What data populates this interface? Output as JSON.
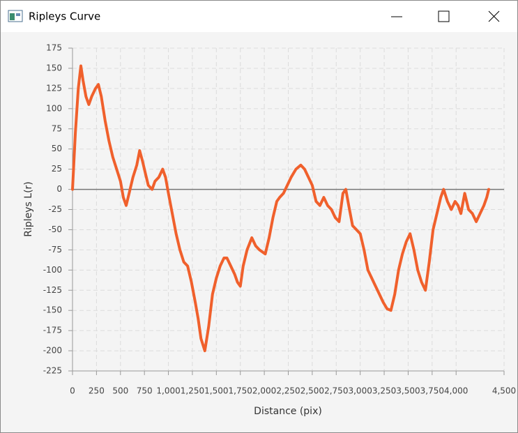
{
  "window": {
    "title": "Ripleys Curve"
  },
  "chart_data": {
    "type": "line",
    "xlabel": "Distance (pix)",
    "ylabel": "Ripleys L(r)",
    "x": [
      0,
      30,
      60,
      87,
      110,
      140,
      170,
      200,
      240,
      270,
      300,
      340,
      380,
      420,
      460,
      500,
      530,
      560,
      590,
      630,
      670,
      700,
      730,
      760,
      790,
      830,
      860,
      900,
      940,
      970,
      1000,
      1040,
      1080,
      1120,
      1160,
      1200,
      1240,
      1280,
      1310,
      1340,
      1380,
      1420,
      1460,
      1500,
      1540,
      1580,
      1610,
      1650,
      1690,
      1720,
      1750,
      1780,
      1820,
      1870,
      1910,
      1950,
      2010,
      2050,
      2090,
      2130,
      2160,
      2200,
      2240,
      2280,
      2330,
      2380,
      2420,
      2460,
      2500,
      2540,
      2580,
      2620,
      2660,
      2700,
      2740,
      2780,
      2820,
      2850,
      2880,
      2920,
      2960,
      3000,
      3040,
      3080,
      3120,
      3160,
      3200,
      3240,
      3280,
      3320,
      3360,
      3400,
      3440,
      3480,
      3520,
      3560,
      3600,
      3640,
      3680,
      3720,
      3760,
      3800,
      3840,
      3870,
      3910,
      3950,
      3990,
      4020,
      4050,
      4090,
      4130,
      4170,
      4210,
      4250,
      4290,
      4320,
      4340
    ],
    "series": [
      {
        "color": "#f0602c",
        "values": [
          0,
          70,
          125,
          153,
          135,
          115,
          105,
          115,
          125,
          130,
          115,
          85,
          60,
          40,
          25,
          10,
          -10,
          -20,
          -5,
          15,
          30,
          48,
          35,
          20,
          5,
          0,
          10,
          15,
          25,
          15,
          -5,
          -30,
          -55,
          -75,
          -90,
          -95,
          -115,
          -140,
          -160,
          -185,
          -200,
          -170,
          -130,
          -110,
          -95,
          -85,
          -85,
          -95,
          -105,
          -115,
          -120,
          -95,
          -75,
          -60,
          -70,
          -75,
          -80,
          -60,
          -35,
          -15,
          -10,
          -5,
          5,
          15,
          25,
          30,
          25,
          15,
          5,
          -15,
          -20,
          -10,
          -20,
          -25,
          -35,
          -40,
          -5,
          0,
          -20,
          -45,
          -50,
          -55,
          -75,
          -100,
          -110,
          -120,
          -130,
          -140,
          -148,
          -150,
          -130,
          -100,
          -80,
          -65,
          -55,
          -75,
          -100,
          -115,
          -125,
          -90,
          -50,
          -30,
          -10,
          0,
          -15,
          -25,
          -15,
          -20,
          -30,
          -5,
          -25,
          -30,
          -40,
          -30,
          -20,
          -10,
          0
        ]
      }
    ],
    "xlim": [
      0,
      4500
    ],
    "xticks": [
      0,
      250,
      500,
      750,
      {
        "value": 1000,
        "label": "1,000"
      },
      {
        "value": 1250,
        "label": "1,250"
      },
      {
        "value": 1500,
        "label": "1,500"
      },
      {
        "value": 1750,
        "label": "1,750"
      },
      {
        "value": 2000,
        "label": "2,000"
      },
      {
        "value": 2250,
        "label": "2,250"
      },
      {
        "value": 2500,
        "label": "2,500"
      },
      {
        "value": 2750,
        "label": "2,750"
      },
      {
        "value": 3000,
        "label": "3,000"
      },
      {
        "value": 3250,
        "label": "3,250"
      },
      {
        "value": 3500,
        "label": "3,500"
      },
      {
        "value": 3750,
        "label": "3,750"
      },
      {
        "value": 4000,
        "label": "4,000"
      },
      {
        "value": 4500,
        "label": "4,500"
      }
    ],
    "ylim": [
      -225,
      175
    ],
    "yticks": [
      -225,
      -200,
      -175,
      -150,
      -125,
      -100,
      -75,
      -50,
      -25,
      0,
      25,
      50,
      75,
      100,
      125,
      150,
      175
    ],
    "grid": true
  }
}
